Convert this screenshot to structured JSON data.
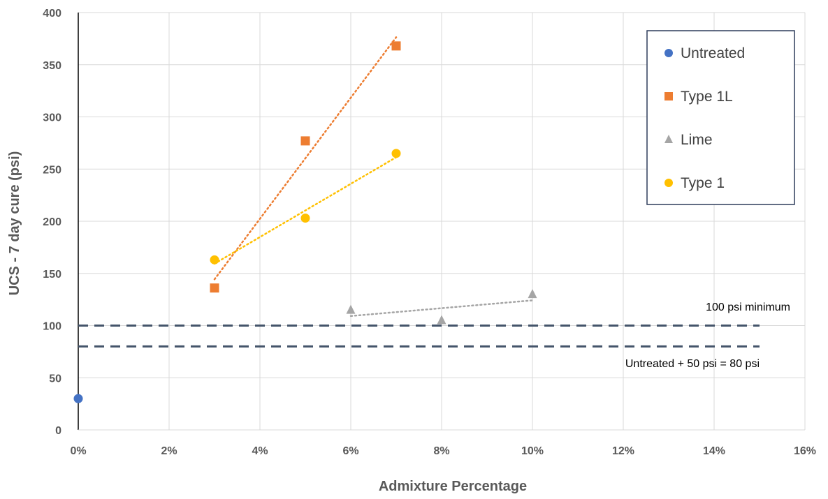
{
  "chart_data": {
    "type": "scatter",
    "xlabel": "Admixture Percentage",
    "ylabel": "UCS - 7 day cure (psi)",
    "xlim": [
      0,
      16
    ],
    "ylim": [
      0,
      400
    ],
    "x_tick_values": [
      0,
      2,
      4,
      6,
      8,
      10,
      12,
      14,
      16
    ],
    "x_tick_labels": [
      "0%",
      "2%",
      "4%",
      "6%",
      "8%",
      "10%",
      "12%",
      "14%",
      "16%"
    ],
    "y_tick_values": [
      0,
      50,
      100,
      150,
      200,
      250,
      300,
      350,
      400
    ],
    "y_tick_labels": [
      "0",
      "50",
      "100",
      "150",
      "200",
      "250",
      "300",
      "350",
      "400"
    ],
    "grid": true,
    "legend_position": "top-right",
    "series": [
      {
        "name": "Untreated",
        "marker": "circle",
        "color": "#4472C4",
        "trendline": false,
        "points": [
          {
            "x": 0,
            "y": 30
          }
        ]
      },
      {
        "name": "Type 1L",
        "marker": "square",
        "color": "#ED7D31",
        "trendline": true,
        "points": [
          {
            "x": 3,
            "y": 136
          },
          {
            "x": 5,
            "y": 277
          },
          {
            "x": 7,
            "y": 368
          }
        ]
      },
      {
        "name": "Lime",
        "marker": "triangle",
        "color": "#A5A5A5",
        "trendline": true,
        "points": [
          {
            "x": 6,
            "y": 115
          },
          {
            "x": 8,
            "y": 105
          },
          {
            "x": 10,
            "y": 130
          }
        ]
      },
      {
        "name": "Type 1",
        "marker": "circle",
        "color": "#FFC000",
        "trendline": true,
        "points": [
          {
            "x": 3,
            "y": 163
          },
          {
            "x": 5,
            "y": 203
          },
          {
            "x": 7,
            "y": 265
          }
        ]
      }
    ],
    "reference_lines": [
      {
        "y": 100,
        "x_from": 0,
        "x_to": 15,
        "label": "100 psi minimum",
        "color": "#44546A",
        "style": "dashed"
      },
      {
        "y": 80,
        "x_from": 0,
        "x_to": 15,
        "label": "Untreated + 50 psi = 80 psi",
        "color": "#44546A",
        "style": "dashed"
      }
    ]
  }
}
